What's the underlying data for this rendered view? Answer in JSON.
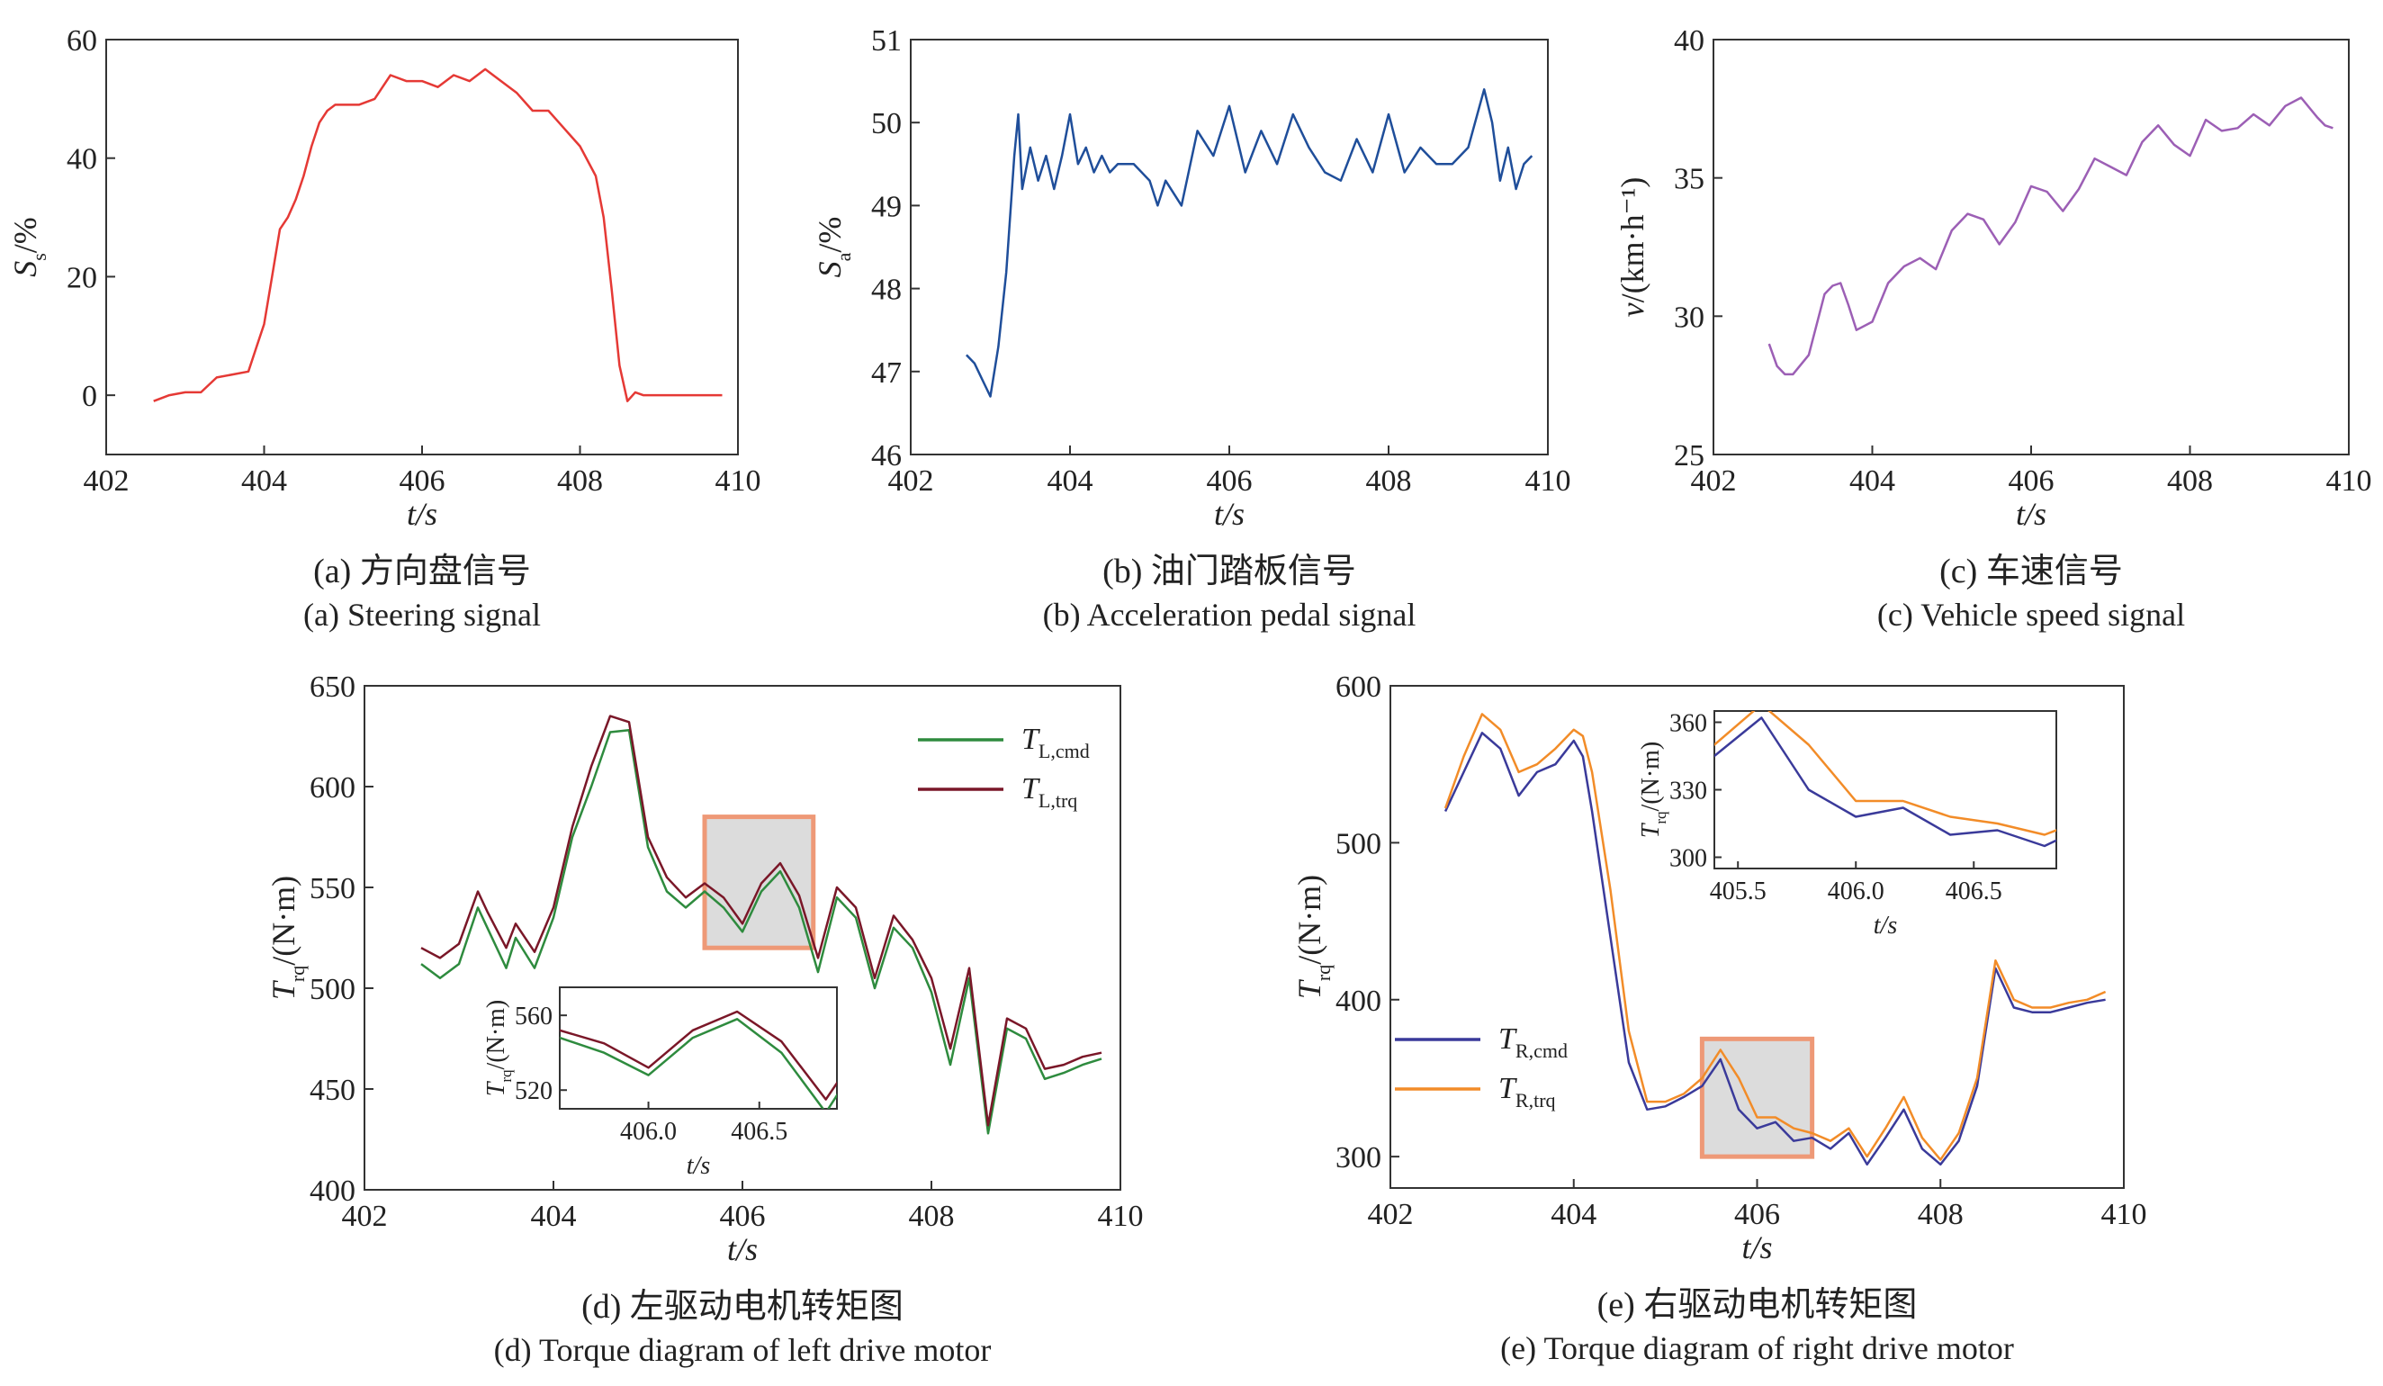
{
  "chart_data": [
    {
      "id": "a",
      "type": "line",
      "caption_cn": "(a) 方向盘信号",
      "caption_en": "(a) Steering signal",
      "xlabel": "t/s",
      "ylabel_main": "S",
      "ylabel_sub": "s",
      "ylabel_unit": "/%",
      "xlim": [
        402,
        410
      ],
      "ylim": [
        -10,
        60
      ],
      "xticks": [
        "402",
        "404",
        "406",
        "408",
        "410"
      ],
      "yticks": [
        "0",
        "20",
        "40",
        "60"
      ],
      "color": "#e53935",
      "series": [
        {
          "x": [
            402.6,
            402.8,
            403.0,
            403.2,
            403.4,
            403.6,
            403.8,
            403.9,
            404.0,
            404.1,
            404.2,
            404.3,
            404.4,
            404.5,
            404.6,
            404.7,
            404.8,
            404.9,
            405.0,
            405.2,
            405.4,
            405.5,
            405.6,
            405.8,
            406.0,
            406.2,
            406.4,
            406.6,
            406.8,
            407.0,
            407.2,
            407.4,
            407.6,
            407.8,
            408.0,
            408.2,
            408.3,
            408.4,
            408.5,
            408.6,
            408.7,
            408.8,
            409.0,
            409.2,
            409.4,
            409.6,
            409.8
          ],
          "y": [
            -1,
            0,
            0.5,
            0.5,
            3,
            3.5,
            4,
            8,
            12,
            20,
            28,
            30,
            33,
            37,
            42,
            46,
            48,
            49,
            49,
            49,
            50,
            52,
            54,
            53,
            53,
            52,
            54,
            53,
            55,
            53,
            51,
            48,
            48,
            45,
            42,
            37,
            30,
            18,
            5,
            -1,
            0.5,
            0,
            0,
            0,
            0,
            0,
            0
          ]
        }
      ]
    },
    {
      "id": "b",
      "type": "line",
      "caption_cn": "(b) 油门踏板信号",
      "caption_en": "(b) Acceleration pedal signal",
      "xlabel": "t/s",
      "ylabel_main": "S",
      "ylabel_sub": "a",
      "ylabel_unit": "/%",
      "xlim": [
        402,
        410
      ],
      "ylim": [
        46,
        51
      ],
      "xticks": [
        "402",
        "404",
        "406",
        "408",
        "410"
      ],
      "yticks": [
        "46",
        "47",
        "48",
        "49",
        "50",
        "51"
      ],
      "color": "#1f4e9a",
      "series": [
        {
          "x": [
            402.7,
            402.8,
            402.9,
            403.0,
            403.1,
            403.2,
            403.3,
            403.35,
            403.4,
            403.5,
            403.6,
            403.7,
            403.8,
            403.9,
            404.0,
            404.1,
            404.2,
            404.3,
            404.4,
            404.5,
            404.6,
            404.8,
            405.0,
            405.1,
            405.2,
            405.4,
            405.6,
            405.8,
            406.0,
            406.2,
            406.4,
            406.6,
            406.8,
            407.0,
            407.2,
            407.4,
            407.6,
            407.8,
            408.0,
            408.2,
            408.4,
            408.6,
            408.8,
            409.0,
            409.2,
            409.3,
            409.4,
            409.5,
            409.6,
            409.7,
            409.8
          ],
          "y": [
            47.2,
            47.1,
            46.9,
            46.7,
            47.3,
            48.2,
            49.6,
            50.1,
            49.2,
            49.7,
            49.3,
            49.6,
            49.2,
            49.6,
            50.1,
            49.5,
            49.7,
            49.4,
            49.6,
            49.4,
            49.5,
            49.5,
            49.3,
            49.0,
            49.3,
            49.0,
            49.9,
            49.6,
            50.2,
            49.4,
            49.9,
            49.5,
            50.1,
            49.7,
            49.4,
            49.3,
            49.8,
            49.4,
            50.1,
            49.4,
            49.7,
            49.5,
            49.5,
            49.7,
            50.4,
            50.0,
            49.3,
            49.7,
            49.2,
            49.5,
            49.6
          ]
        }
      ]
    },
    {
      "id": "c",
      "type": "line",
      "caption_cn": "(c) 车速信号",
      "caption_en": "(c) Vehicle speed signal",
      "xlabel": "t/s",
      "ylabel_main": "v",
      "ylabel_sub": "",
      "ylabel_unit": "/(km·h⁻¹)",
      "xlim": [
        402,
        410
      ],
      "ylim": [
        25,
        40
      ],
      "xticks": [
        "402",
        "404",
        "406",
        "408",
        "410"
      ],
      "yticks": [
        "25",
        "30",
        "35",
        "40"
      ],
      "color": "#9c5fb5",
      "series": [
        {
          "x": [
            402.7,
            402.8,
            402.9,
            403.0,
            403.2,
            403.4,
            403.5,
            403.6,
            403.7,
            403.8,
            404.0,
            404.2,
            404.4,
            404.6,
            404.8,
            405.0,
            405.2,
            405.4,
            405.6,
            405.8,
            406.0,
            406.2,
            406.4,
            406.6,
            406.8,
            407.0,
            407.2,
            407.4,
            407.6,
            407.8,
            408.0,
            408.2,
            408.4,
            408.6,
            408.8,
            409.0,
            409.2,
            409.4,
            409.6,
            409.7,
            409.8
          ],
          "y": [
            29.0,
            28.2,
            27.9,
            27.9,
            28.6,
            30.8,
            31.1,
            31.2,
            30.4,
            29.5,
            29.8,
            31.2,
            31.8,
            32.1,
            31.7,
            33.1,
            33.7,
            33.5,
            32.6,
            33.4,
            34.7,
            34.5,
            33.8,
            34.6,
            35.7,
            35.4,
            35.1,
            36.3,
            36.9,
            36.2,
            35.8,
            37.1,
            36.7,
            36.8,
            37.3,
            36.9,
            37.6,
            37.9,
            37.2,
            36.9,
            36.8
          ]
        }
      ]
    },
    {
      "id": "d",
      "type": "line",
      "caption_cn": "(d) 左驱动电机转矩图",
      "caption_en": "(d) Torque diagram of left drive motor",
      "xlabel": "t/s",
      "ylabel_main": "T",
      "ylabel_sub": "rq",
      "ylabel_unit": "/(N·m)",
      "xlim": [
        402,
        410
      ],
      "ylim": [
        400,
        650
      ],
      "xticks": [
        "402",
        "404",
        "406",
        "408",
        "410"
      ],
      "yticks": [
        "400",
        "450",
        "500",
        "550",
        "600",
        "650"
      ],
      "legend_position": "top-right",
      "series": [
        {
          "name_main": "T",
          "name_sub": "L,cmd",
          "color": "#2e8b3e",
          "x": [
            402.6,
            402.8,
            403.0,
            403.2,
            403.3,
            403.5,
            403.6,
            403.8,
            404.0,
            404.2,
            404.4,
            404.6,
            404.8,
            405.0,
            405.2,
            405.4,
            405.6,
            405.8,
            406.0,
            406.2,
            406.4,
            406.6,
            406.8,
            407.0,
            407.2,
            407.4,
            407.6,
            407.8,
            408.0,
            408.2,
            408.4,
            408.6,
            408.8,
            409.0,
            409.2,
            409.4,
            409.6,
            409.8
          ],
          "y": [
            512,
            505,
            512,
            540,
            530,
            510,
            525,
            510,
            535,
            575,
            600,
            627,
            628,
            570,
            548,
            540,
            548,
            540,
            528,
            548,
            558,
            540,
            508,
            545,
            535,
            500,
            530,
            520,
            498,
            462,
            505,
            428,
            480,
            475,
            455,
            458,
            462,
            465
          ]
        },
        {
          "name_main": "T",
          "name_sub": "L,trq",
          "color": "#7a1728",
          "x": [
            402.6,
            402.8,
            403.0,
            403.2,
            403.3,
            403.5,
            403.6,
            403.8,
            404.0,
            404.2,
            404.4,
            404.6,
            404.8,
            405.0,
            405.2,
            405.4,
            405.6,
            405.8,
            406.0,
            406.2,
            406.4,
            406.6,
            406.8,
            407.0,
            407.2,
            407.4,
            407.6,
            407.8,
            408.0,
            408.2,
            408.4,
            408.6,
            408.8,
            409.0,
            409.2,
            409.4,
            409.6,
            409.8
          ],
          "y": [
            520,
            515,
            522,
            548,
            538,
            520,
            532,
            518,
            540,
            580,
            610,
            635,
            632,
            575,
            555,
            545,
            552,
            545,
            532,
            552,
            562,
            546,
            515,
            550,
            540,
            505,
            536,
            524,
            505,
            470,
            510,
            432,
            485,
            480,
            460,
            462,
            466,
            468
          ]
        }
      ],
      "highlight_box": {
        "x0": 405.6,
        "x1": 406.75,
        "y0": 520,
        "y1": 585
      },
      "inset": {
        "xlim": [
          405.6,
          406.85
        ],
        "ylim": [
          510,
          575
        ],
        "xticks": [
          "406.0",
          "406.5"
        ],
        "xtick_values": [
          406.0,
          406.5
        ],
        "yticks": [
          "520",
          "560"
        ],
        "ytick_values": [
          520,
          560
        ],
        "xlabel": "t/s",
        "ylabel_main": "T",
        "ylabel_sub": "rq",
        "ylabel_unit": "/(N·m)"
      }
    },
    {
      "id": "e",
      "type": "line",
      "caption_cn": "(e) 右驱动电机转矩图",
      "caption_en": "(e) Torque diagram of right drive motor",
      "xlabel": "t/s",
      "ylabel_main": "T",
      "ylabel_sub": "rq",
      "ylabel_unit": "/(N·m)",
      "xlim": [
        402,
        410
      ],
      "ylim": [
        280,
        600
      ],
      "xticks": [
        "402",
        "404",
        "406",
        "408",
        "410"
      ],
      "yticks": [
        "300",
        "400",
        "500",
        "600"
      ],
      "legend_position": "bottom-left",
      "series": [
        {
          "name_main": "T",
          "name_sub": "R,cmd",
          "color": "#3a3a9a",
          "x": [
            402.6,
            402.8,
            403.0,
            403.2,
            403.4,
            403.6,
            403.8,
            404.0,
            404.1,
            404.2,
            404.4,
            404.6,
            404.8,
            405.0,
            405.2,
            405.4,
            405.6,
            405.8,
            406.0,
            406.2,
            406.4,
            406.6,
            406.8,
            407.0,
            407.2,
            407.4,
            407.6,
            407.8,
            408.0,
            408.2,
            408.4,
            408.6,
            408.8,
            409.0,
            409.2,
            409.4,
            409.6,
            409.8
          ],
          "y": [
            520,
            545,
            570,
            560,
            530,
            545,
            550,
            565,
            555,
            520,
            440,
            360,
            330,
            332,
            338,
            345,
            362,
            330,
            318,
            322,
            310,
            312,
            305,
            315,
            295,
            312,
            330,
            305,
            295,
            310,
            345,
            420,
            395,
            392,
            392,
            395,
            398,
            400
          ]
        },
        {
          "name_main": "T",
          "name_sub": "R,trq",
          "color": "#f28c28",
          "x": [
            402.6,
            402.8,
            403.0,
            403.2,
            403.4,
            403.6,
            403.8,
            404.0,
            404.1,
            404.2,
            404.4,
            404.6,
            404.8,
            405.0,
            405.2,
            405.4,
            405.6,
            405.8,
            406.0,
            406.2,
            406.4,
            406.6,
            406.8,
            407.0,
            407.2,
            407.4,
            407.6,
            407.8,
            408.0,
            408.2,
            408.4,
            408.6,
            408.8,
            409.0,
            409.2,
            409.4,
            409.6,
            409.8
          ],
          "y": [
            522,
            555,
            582,
            572,
            545,
            550,
            560,
            572,
            568,
            545,
            470,
            380,
            335,
            335,
            340,
            350,
            368,
            350,
            325,
            325,
            318,
            315,
            310,
            318,
            300,
            318,
            338,
            312,
            298,
            315,
            350,
            425,
            400,
            395,
            395,
            398,
            400,
            405
          ]
        }
      ],
      "highlight_box": {
        "x0": 405.4,
        "x1": 406.6,
        "y0": 300,
        "y1": 375
      },
      "inset": {
        "xlim": [
          405.4,
          406.85
        ],
        "ylim": [
          295,
          365
        ],
        "xticks": [
          "405.5",
          "406.0",
          "406.5"
        ],
        "xtick_values": [
          405.5,
          406.0,
          406.5
        ],
        "yticks": [
          "300",
          "330",
          "360"
        ],
        "ytick_values": [
          300,
          330,
          360
        ],
        "xlabel": "t/s",
        "ylabel_main": "T",
        "ylabel_sub": "rq",
        "ylabel_unit": "/(N·m)"
      }
    }
  ]
}
